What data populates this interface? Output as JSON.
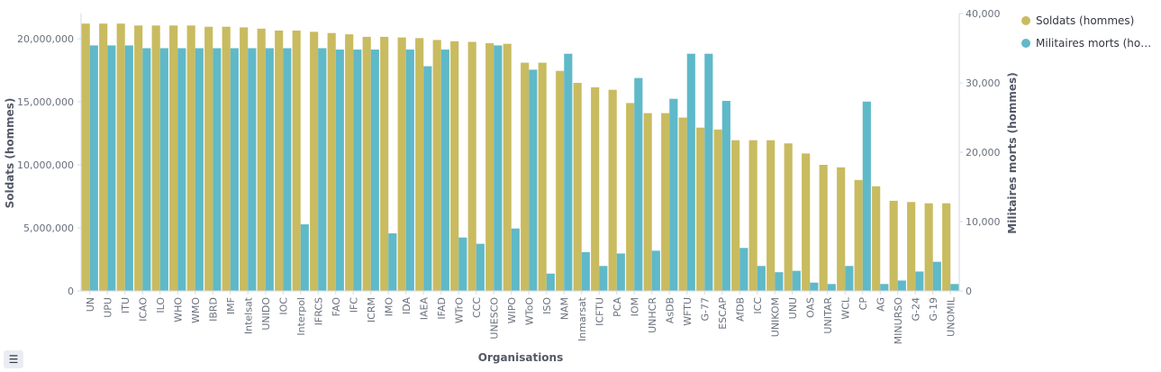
{
  "chart_data": {
    "type": "bar",
    "xlabel": "Organisations",
    "ylabel_left": "Soldats (hommes)",
    "ylabel_right": "Militaires morts (hommes)",
    "ylim_left": [
      0,
      22000000
    ],
    "ylim_right": [
      0,
      40000
    ],
    "yticks_left": [
      "0",
      "5,000,000",
      "10,000,000",
      "15,000,000",
      "20,000,000"
    ],
    "yticks_right": [
      "0",
      "10,000",
      "20,000",
      "30,000",
      "40,000"
    ],
    "legend_position": "top-right",
    "categories": [
      "UN",
      "UPU",
      "ITU",
      "ICAO",
      "ILO",
      "WHO",
      "WMO",
      "IBRD",
      "IMF",
      "Intelsat",
      "UNIDO",
      "IOC",
      "Interpol",
      "IFRCS",
      "FAO",
      "IFC",
      "ICRM",
      "IMO",
      "IDA",
      "IAEA",
      "IFAD",
      "WTrO",
      "CCC",
      "UNESCO",
      "WIPO",
      "WToO",
      "ISO",
      "NAM",
      "Inmarsat",
      "ICFTU",
      "PCA",
      "IOM",
      "UNHCR",
      "AsDB",
      "WFTU",
      "G-77",
      "ESCAP",
      "AfDB",
      "ICC",
      "UNIKOM",
      "UNU",
      "OAS",
      "UNITAR",
      "WCL",
      "CP",
      "AG",
      "MINURSO",
      "G-24",
      "G-19",
      "UNOMIL"
    ],
    "series": [
      {
        "name": "Soldats (hommes)",
        "axis": "left",
        "color": "#c9bb60",
        "values": [
          21200000,
          21200000,
          21200000,
          21050000,
          21050000,
          21050000,
          21050000,
          20950000,
          20950000,
          20900000,
          20800000,
          20650000,
          20650000,
          20550000,
          20450000,
          20350000,
          20150000,
          20150000,
          20100000,
          20050000,
          19900000,
          19800000,
          19750000,
          19650000,
          19600000,
          18100000,
          18100000,
          17450000,
          16500000,
          16150000,
          15950000,
          14900000,
          14100000,
          14100000,
          13750000,
          12950000,
          12800000,
          11950000,
          11950000,
          11950000,
          11700000,
          10900000,
          10000000,
          9800000,
          8800000,
          8300000,
          7150000,
          7050000,
          6950000,
          6950000
        ]
      },
      {
        "name": "Militaires morts (hommes)",
        "axis": "right",
        "color": "#5fb9c8",
        "values": [
          35400,
          35400,
          35400,
          35000,
          35000,
          35000,
          35000,
          35000,
          35000,
          35000,
          35000,
          35000,
          9600,
          35000,
          34800,
          34800,
          34800,
          8300,
          34800,
          32400,
          34800,
          7700,
          6800,
          35400,
          9000,
          31900,
          2500,
          34200,
          5600,
          3600,
          5400,
          30700,
          5800,
          27700,
          34200,
          34200,
          27400,
          6200,
          3600,
          2700,
          2900,
          1200,
          1000,
          3600,
          27300,
          1000,
          1500,
          2800,
          4200,
          1000
        ]
      }
    ]
  },
  "legend": {
    "items": [
      {
        "label": "Soldats (hommes)",
        "color": "#c9bb60"
      },
      {
        "label": "Militaires morts (hom...",
        "color": "#5fb9c8"
      }
    ],
    "toggle_icon": "list-icon"
  }
}
